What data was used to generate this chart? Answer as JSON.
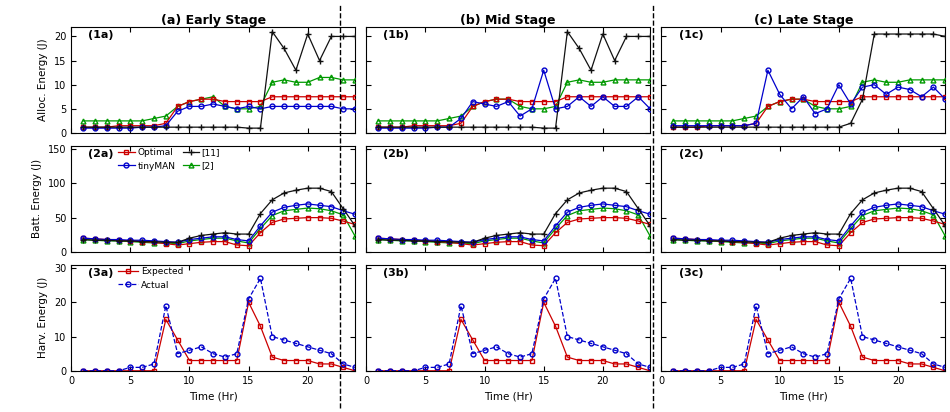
{
  "time": [
    1,
    2,
    3,
    4,
    5,
    6,
    7,
    8,
    9,
    10,
    11,
    12,
    13,
    14,
    15,
    16,
    17,
    18,
    19,
    20,
    21,
    22,
    23,
    24
  ],
  "alloc_optimal_a": [
    1.2,
    1.2,
    1.2,
    1.5,
    1.5,
    1.5,
    1.5,
    2.0,
    5.5,
    6.5,
    7.0,
    7.0,
    6.5,
    6.5,
    6.5,
    6.5,
    7.5,
    7.5,
    7.5,
    7.5,
    7.5,
    7.5,
    7.5,
    7.5
  ],
  "alloc_tinyman_a": [
    1.0,
    1.0,
    1.0,
    1.0,
    1.0,
    1.2,
    1.2,
    1.5,
    4.5,
    5.5,
    5.5,
    6.0,
    5.5,
    5.0,
    5.5,
    5.0,
    5.5,
    5.5,
    5.5,
    5.5,
    5.5,
    5.5,
    5.0,
    5.0
  ],
  "alloc_11_a": [
    1.2,
    1.2,
    1.2,
    1.2,
    1.2,
    1.2,
    1.2,
    1.2,
    1.2,
    1.2,
    1.2,
    1.2,
    1.2,
    1.2,
    1.0,
    1.0,
    21.0,
    17.5,
    13.0,
    20.5,
    15.0,
    20.0,
    20.0,
    20.0
  ],
  "alloc_2_a": [
    2.5,
    2.5,
    2.5,
    2.5,
    2.5,
    2.5,
    3.0,
    3.5,
    5.5,
    6.5,
    7.0,
    7.5,
    5.5,
    5.0,
    5.0,
    5.5,
    10.5,
    11.0,
    10.5,
    10.5,
    11.5,
    11.5,
    11.0,
    11.0
  ],
  "alloc_optimal_b": [
    1.2,
    1.2,
    1.2,
    1.5,
    1.5,
    1.5,
    1.5,
    2.0,
    5.5,
    6.5,
    7.0,
    7.0,
    6.5,
    6.5,
    6.5,
    6.5,
    7.5,
    7.5,
    7.5,
    7.5,
    7.5,
    7.5,
    7.5,
    7.5
  ],
  "alloc_tinyman_b": [
    1.0,
    1.0,
    1.0,
    1.0,
    1.0,
    1.2,
    1.2,
    3.0,
    6.5,
    6.0,
    5.5,
    6.5,
    3.5,
    5.0,
    13.0,
    5.0,
    5.5,
    7.5,
    5.5,
    7.5,
    5.5,
    5.5,
    7.5,
    5.0
  ],
  "alloc_11_b": [
    1.2,
    1.2,
    1.2,
    1.2,
    1.2,
    1.2,
    1.2,
    1.2,
    1.2,
    1.2,
    1.2,
    1.2,
    1.2,
    1.2,
    1.0,
    1.0,
    21.0,
    17.5,
    13.0,
    20.5,
    15.0,
    20.0,
    20.0,
    20.0
  ],
  "alloc_2_b": [
    2.5,
    2.5,
    2.5,
    2.5,
    2.5,
    2.5,
    3.0,
    3.5,
    5.5,
    6.5,
    7.0,
    7.0,
    5.5,
    5.0,
    5.0,
    5.5,
    10.5,
    11.0,
    10.5,
    10.5,
    11.0,
    11.0,
    11.0,
    11.0
  ],
  "alloc_optimal_c": [
    1.2,
    1.2,
    1.2,
    1.5,
    1.5,
    1.5,
    1.5,
    2.0,
    5.5,
    6.5,
    7.0,
    7.0,
    6.5,
    6.5,
    6.5,
    6.5,
    7.5,
    7.5,
    7.5,
    7.5,
    7.5,
    7.5,
    7.5,
    7.5
  ],
  "alloc_tinyman_c": [
    1.5,
    1.5,
    1.5,
    1.5,
    1.5,
    1.5,
    1.5,
    2.0,
    13.0,
    8.0,
    5.0,
    7.5,
    4.0,
    5.0,
    10.0,
    6.0,
    9.5,
    10.0,
    8.0,
    9.5,
    9.0,
    7.5,
    9.5,
    7.0
  ],
  "alloc_11_c": [
    1.2,
    1.2,
    1.2,
    1.2,
    1.2,
    1.2,
    1.2,
    1.2,
    1.2,
    1.2,
    1.2,
    1.2,
    1.2,
    1.2,
    1.2,
    2.0,
    7.0,
    20.5,
    20.5,
    20.5,
    20.5,
    20.5,
    20.5,
    20.0
  ],
  "alloc_2_c": [
    2.5,
    2.5,
    2.5,
    2.5,
    2.5,
    2.5,
    3.0,
    3.5,
    5.5,
    6.5,
    7.0,
    7.0,
    5.5,
    5.0,
    5.0,
    5.5,
    10.5,
    11.0,
    10.5,
    10.5,
    11.0,
    11.0,
    11.0,
    11.0
  ],
  "batt_optimal_a": [
    20,
    19,
    18,
    17,
    16,
    15,
    14,
    12,
    10,
    12,
    14,
    15,
    15,
    10,
    9,
    28,
    43,
    48,
    49,
    50,
    50,
    49,
    45,
    40
  ],
  "batt_tinyman_a": [
    20,
    19,
    18,
    18,
    17,
    17,
    16,
    15,
    14,
    18,
    20,
    22,
    22,
    18,
    16,
    38,
    58,
    65,
    68,
    70,
    68,
    66,
    60,
    55
  ],
  "batt_11_a": [
    18,
    17,
    17,
    16,
    16,
    15,
    15,
    14,
    14,
    20,
    24,
    26,
    28,
    26,
    26,
    56,
    76,
    86,
    90,
    93,
    93,
    88,
    63,
    38
  ],
  "batt_2_a": [
    18,
    17,
    16,
    16,
    15,
    14,
    13,
    13,
    12,
    16,
    18,
    20,
    20,
    16,
    13,
    34,
    53,
    60,
    62,
    64,
    63,
    60,
    54,
    23
  ],
  "batt_optimal_b": [
    20,
    19,
    18,
    17,
    16,
    15,
    14,
    12,
    10,
    12,
    14,
    15,
    15,
    10,
    9,
    28,
    43,
    48,
    49,
    50,
    50,
    49,
    45,
    40
  ],
  "batt_tinyman_b": [
    20,
    19,
    18,
    18,
    17,
    17,
    16,
    15,
    14,
    18,
    20,
    22,
    22,
    18,
    16,
    38,
    58,
    65,
    68,
    70,
    68,
    66,
    60,
    55
  ],
  "batt_11_b": [
    18,
    17,
    17,
    16,
    16,
    15,
    15,
    14,
    14,
    20,
    24,
    26,
    28,
    26,
    26,
    56,
    76,
    86,
    90,
    93,
    93,
    88,
    63,
    38
  ],
  "batt_2_b": [
    18,
    17,
    16,
    16,
    15,
    14,
    13,
    13,
    12,
    16,
    18,
    20,
    20,
    16,
    13,
    34,
    53,
    60,
    62,
    64,
    63,
    60,
    54,
    23
  ],
  "batt_optimal_c": [
    20,
    19,
    18,
    17,
    16,
    15,
    14,
    12,
    10,
    12,
    14,
    15,
    15,
    10,
    9,
    28,
    43,
    48,
    49,
    50,
    50,
    49,
    45,
    40
  ],
  "batt_tinyman_c": [
    20,
    19,
    18,
    18,
    17,
    17,
    16,
    15,
    14,
    18,
    20,
    22,
    22,
    18,
    16,
    38,
    58,
    65,
    68,
    70,
    68,
    66,
    60,
    55
  ],
  "batt_11_c": [
    18,
    17,
    17,
    16,
    16,
    15,
    15,
    14,
    14,
    20,
    24,
    26,
    28,
    26,
    26,
    56,
    76,
    86,
    90,
    93,
    93,
    88,
    63,
    38
  ],
  "batt_2_c": [
    18,
    17,
    16,
    16,
    15,
    14,
    13,
    13,
    12,
    16,
    18,
    20,
    20,
    16,
    13,
    34,
    53,
    60,
    62,
    64,
    63,
    60,
    54,
    23
  ],
  "harv_expected_a": [
    0,
    0,
    0,
    0,
    0,
    0,
    0,
    15,
    9,
    3,
    3,
    3,
    3,
    3,
    20,
    13,
    4,
    3,
    3,
    3,
    2,
    2,
    1,
    0
  ],
  "harv_actual_a": [
    0,
    0,
    0,
    0,
    1,
    1,
    2,
    19,
    5,
    6,
    7,
    5,
    4,
    5,
    21,
    27,
    10,
    9,
    8,
    7,
    6,
    5,
    2,
    1
  ],
  "harv_expected_b": [
    0,
    0,
    0,
    0,
    0,
    0,
    0,
    15,
    9,
    3,
    3,
    3,
    3,
    3,
    20,
    13,
    4,
    3,
    3,
    3,
    2,
    2,
    1,
    0
  ],
  "harv_actual_b": [
    0,
    0,
    0,
    0,
    1,
    1,
    2,
    19,
    5,
    6,
    7,
    5,
    4,
    5,
    21,
    27,
    10,
    9,
    8,
    7,
    6,
    5,
    2,
    1
  ],
  "harv_expected_c": [
    0,
    0,
    0,
    0,
    0,
    0,
    0,
    15,
    9,
    3,
    3,
    3,
    3,
    3,
    20,
    13,
    4,
    3,
    3,
    3,
    2,
    2,
    1,
    0
  ],
  "harv_actual_c": [
    0,
    0,
    0,
    0,
    1,
    1,
    2,
    19,
    5,
    6,
    7,
    5,
    4,
    5,
    21,
    27,
    10,
    9,
    8,
    7,
    6,
    5,
    2,
    1
  ],
  "col_optimal": "#cc0000",
  "col_tinyman": "#0000cc",
  "col_11": "#111111",
  "col_2": "#009900",
  "col_expected": "#cc0000",
  "col_actual": "#0000cc",
  "titles": [
    "(a) Early Stage",
    "(b) Mid Stage",
    "(c) Late Stage"
  ],
  "panel_labels_row1": [
    "(1a)",
    "(1b)",
    "(1c)"
  ],
  "panel_labels_row2": [
    "(2a)",
    "(2b)",
    "(2c)"
  ],
  "panel_labels_row3": [
    "(3a)",
    "(3b)",
    "(3c)"
  ],
  "ylabel_alloc": "Alloc. Energy (J)",
  "ylabel_batt": "Batt. Energy (J)",
  "ylabel_harv": "Harv. Energy (J)",
  "xlabel": "Time (Hr)",
  "alloc_ylim": [
    0,
    22
  ],
  "batt_ylim": [
    0,
    155
  ],
  "harv_ylim": [
    0,
    31
  ],
  "xticks": [
    0,
    5,
    10,
    15,
    20
  ],
  "alloc_yticks": [
    0,
    5,
    10,
    15,
    20
  ],
  "batt_yticks": [
    0,
    50,
    100,
    150
  ],
  "harv_yticks": [
    0,
    10,
    20,
    30
  ]
}
